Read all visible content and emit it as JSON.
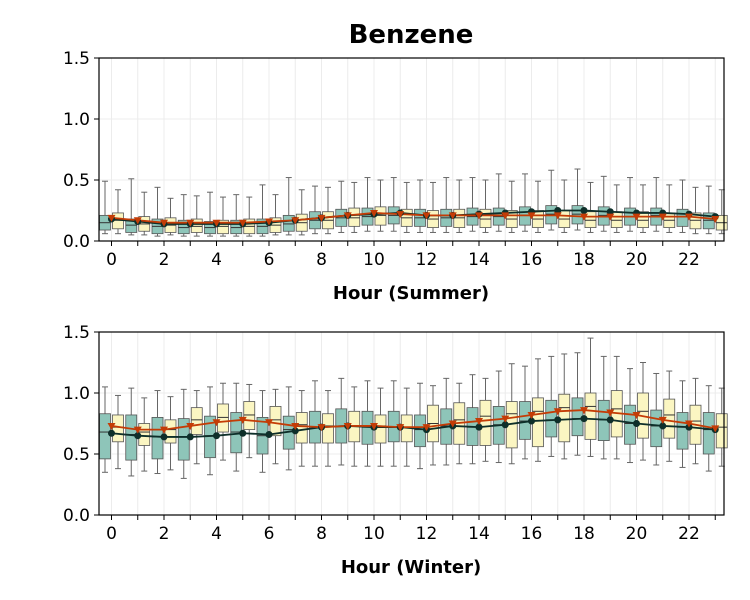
{
  "figure": {
    "title": "Benzene"
  },
  "colors": {
    "box_a": "#8ec5b9",
    "box_b": "#fbf6c2",
    "box_edge": "#555555",
    "whisker": "#666666",
    "line_a": "#0e2f2a",
    "line_b": "#c43c06",
    "grid": "#ececec"
  },
  "chart_data": [
    {
      "type": "box",
      "xlabel": "Hour (Summer)",
      "ylabel": "",
      "ylim": [
        0,
        1.5
      ],
      "yticks": [
        "0.0",
        "0.5",
        "1.0",
        "1.5"
      ],
      "xticks": [
        "0",
        "2",
        "4",
        "6",
        "8",
        "10",
        "12",
        "14",
        "16",
        "18",
        "20",
        "22"
      ],
      "hours": [
        0,
        1,
        2,
        3,
        4,
        5,
        6,
        7,
        8,
        9,
        10,
        11,
        12,
        13,
        14,
        15,
        16,
        17,
        18,
        19,
        20,
        21,
        22,
        23
      ],
      "grid": true,
      "series": [
        {
          "median_line": [
            0.18,
            0.16,
            0.14,
            0.14,
            0.14,
            0.14,
            0.15,
            0.17,
            0.19,
            0.21,
            0.22,
            0.23,
            0.21,
            0.21,
            0.22,
            0.23,
            0.24,
            0.25,
            0.25,
            0.24,
            0.23,
            0.23,
            0.22,
            0.2
          ],
          "boxes": [
            [
              0.06,
              0.09,
              0.15,
              0.21,
              0.49
            ],
            [
              0.05,
              0.07,
              0.13,
              0.18,
              0.51
            ],
            [
              0.04,
              0.06,
              0.12,
              0.18,
              0.44
            ],
            [
              0.04,
              0.06,
              0.11,
              0.17,
              0.38
            ],
            [
              0.04,
              0.06,
              0.11,
              0.16,
              0.4
            ],
            [
              0.04,
              0.06,
              0.11,
              0.17,
              0.38
            ],
            [
              0.04,
              0.06,
              0.12,
              0.18,
              0.46
            ],
            [
              0.05,
              0.08,
              0.14,
              0.21,
              0.52
            ],
            [
              0.06,
              0.1,
              0.17,
              0.24,
              0.45
            ],
            [
              0.07,
              0.12,
              0.19,
              0.26,
              0.49
            ],
            [
              0.08,
              0.13,
              0.2,
              0.27,
              0.52
            ],
            [
              0.08,
              0.14,
              0.21,
              0.28,
              0.52
            ],
            [
              0.07,
              0.12,
              0.19,
              0.26,
              0.5
            ],
            [
              0.07,
              0.12,
              0.19,
              0.26,
              0.52
            ],
            [
              0.08,
              0.13,
              0.2,
              0.27,
              0.52
            ],
            [
              0.08,
              0.13,
              0.2,
              0.27,
              0.55
            ],
            [
              0.08,
              0.13,
              0.21,
              0.28,
              0.55
            ],
            [
              0.09,
              0.14,
              0.22,
              0.29,
              0.58
            ],
            [
              0.09,
              0.14,
              0.22,
              0.29,
              0.59
            ],
            [
              0.08,
              0.13,
              0.21,
              0.28,
              0.53
            ],
            [
              0.08,
              0.13,
              0.2,
              0.27,
              0.52
            ],
            [
              0.08,
              0.13,
              0.21,
              0.27,
              0.52
            ],
            [
              0.07,
              0.12,
              0.2,
              0.26,
              0.5
            ],
            [
              0.06,
              0.1,
              0.17,
              0.23,
              0.45
            ]
          ]
        },
        {
          "mean_line": [
            0.19,
            0.17,
            0.15,
            0.15,
            0.15,
            0.15,
            0.16,
            0.17,
            0.19,
            0.21,
            0.23,
            0.22,
            0.21,
            0.21,
            0.21,
            0.21,
            0.21,
            0.21,
            0.2,
            0.2,
            0.2,
            0.2,
            0.2,
            0.18
          ],
          "boxes": [
            [
              0.06,
              0.1,
              0.17,
              0.23,
              0.42
            ],
            [
              0.05,
              0.08,
              0.14,
              0.2,
              0.4
            ],
            [
              0.05,
              0.07,
              0.13,
              0.19,
              0.35
            ],
            [
              0.04,
              0.07,
              0.12,
              0.18,
              0.37
            ],
            [
              0.04,
              0.06,
              0.12,
              0.17,
              0.36
            ],
            [
              0.04,
              0.06,
              0.12,
              0.18,
              0.36
            ],
            [
              0.05,
              0.07,
              0.13,
              0.19,
              0.38
            ],
            [
              0.05,
              0.08,
              0.15,
              0.22,
              0.42
            ],
            [
              0.06,
              0.1,
              0.17,
              0.24,
              0.44
            ],
            [
              0.07,
              0.12,
              0.19,
              0.27,
              0.48
            ],
            [
              0.08,
              0.13,
              0.21,
              0.28,
              0.5
            ],
            [
              0.07,
              0.12,
              0.19,
              0.26,
              0.48
            ],
            [
              0.07,
              0.11,
              0.18,
              0.25,
              0.48
            ],
            [
              0.07,
              0.11,
              0.19,
              0.26,
              0.5
            ],
            [
              0.07,
              0.11,
              0.18,
              0.26,
              0.5
            ],
            [
              0.07,
              0.11,
              0.18,
              0.25,
              0.49
            ],
            [
              0.07,
              0.11,
              0.18,
              0.25,
              0.49
            ],
            [
              0.07,
              0.11,
              0.18,
              0.25,
              0.5
            ],
            [
              0.07,
              0.11,
              0.17,
              0.24,
              0.48
            ],
            [
              0.07,
              0.11,
              0.17,
              0.24,
              0.46
            ],
            [
              0.07,
              0.11,
              0.17,
              0.24,
              0.46
            ],
            [
              0.07,
              0.11,
              0.17,
              0.23,
              0.46
            ],
            [
              0.06,
              0.1,
              0.17,
              0.23,
              0.44
            ],
            [
              0.06,
              0.09,
              0.15,
              0.21,
              0.42
            ]
          ]
        }
      ]
    },
    {
      "type": "box",
      "xlabel": "Hour (Winter)",
      "ylabel": "",
      "ylim": [
        0,
        1.5
      ],
      "yticks": [
        "0.0",
        "0.5",
        "1.0",
        "1.5"
      ],
      "xticks": [
        "0",
        "2",
        "4",
        "6",
        "8",
        "10",
        "12",
        "14",
        "16",
        "18",
        "20",
        "22"
      ],
      "hours": [
        0,
        1,
        2,
        3,
        4,
        5,
        6,
        7,
        8,
        9,
        10,
        11,
        12,
        13,
        14,
        15,
        16,
        17,
        18,
        19,
        20,
        21,
        22,
        23
      ],
      "grid": true,
      "series": [
        {
          "median_line": [
            0.67,
            0.65,
            0.64,
            0.64,
            0.65,
            0.67,
            0.66,
            0.69,
            0.72,
            0.73,
            0.72,
            0.72,
            0.7,
            0.73,
            0.72,
            0.74,
            0.77,
            0.78,
            0.79,
            0.78,
            0.75,
            0.73,
            0.72,
            0.7
          ],
          "boxes": [
            [
              0.35,
              0.46,
              0.68,
              0.83,
              1.05
            ],
            [
              0.32,
              0.45,
              0.66,
              0.82,
              1.04
            ],
            [
              0.34,
              0.46,
              0.64,
              0.8,
              1.02
            ],
            [
              0.3,
              0.45,
              0.64,
              0.79,
              1.03
            ],
            [
              0.33,
              0.47,
              0.65,
              0.81,
              1.05
            ],
            [
              0.36,
              0.51,
              0.68,
              0.84,
              1.08
            ],
            [
              0.35,
              0.5,
              0.65,
              0.8,
              1.02
            ],
            [
              0.37,
              0.54,
              0.7,
              0.81,
              1.05
            ],
            [
              0.4,
              0.59,
              0.72,
              0.85,
              1.1
            ],
            [
              0.41,
              0.59,
              0.73,
              0.87,
              1.12
            ],
            [
              0.4,
              0.58,
              0.72,
              0.85,
              1.1
            ],
            [
              0.4,
              0.6,
              0.72,
              0.85,
              1.1
            ],
            [
              0.38,
              0.56,
              0.7,
              0.82,
              1.08
            ],
            [
              0.41,
              0.58,
              0.73,
              0.87,
              1.12
            ],
            [
              0.42,
              0.57,
              0.72,
              0.88,
              1.15
            ],
            [
              0.43,
              0.58,
              0.74,
              0.89,
              1.18
            ],
            [
              0.46,
              0.62,
              0.77,
              0.93,
              1.22
            ],
            [
              0.48,
              0.64,
              0.78,
              0.94,
              1.3
            ],
            [
              0.49,
              0.65,
              0.79,
              0.96,
              1.33
            ],
            [
              0.46,
              0.61,
              0.78,
              0.94,
              1.3
            ],
            [
              0.43,
              0.58,
              0.75,
              0.9,
              1.2
            ],
            [
              0.41,
              0.56,
              0.73,
              0.86,
              1.16
            ],
            [
              0.39,
              0.54,
              0.72,
              0.84,
              1.1
            ],
            [
              0.36,
              0.5,
              0.7,
              0.84,
              1.06
            ]
          ]
        },
        {
          "mean_line": [
            0.73,
            0.7,
            0.7,
            0.73,
            0.76,
            0.78,
            0.76,
            0.73,
            0.72,
            0.73,
            0.73,
            0.72,
            0.72,
            0.75,
            0.77,
            0.79,
            0.82,
            0.85,
            0.86,
            0.84,
            0.82,
            0.78,
            0.75,
            0.71
          ],
          "boxes": [
            [
              0.38,
              0.6,
              0.72,
              0.82,
              0.98
            ],
            [
              0.36,
              0.57,
              0.68,
              0.75,
              0.96
            ],
            [
              0.37,
              0.59,
              0.7,
              0.78,
              0.97
            ],
            [
              0.42,
              0.66,
              0.78,
              0.88,
              1.02
            ],
            [
              0.45,
              0.68,
              0.8,
              0.91,
              1.08
            ],
            [
              0.47,
              0.7,
              0.82,
              0.93,
              1.07
            ],
            [
              0.42,
              0.65,
              0.78,
              0.89,
              1.03
            ],
            [
              0.4,
              0.59,
              0.74,
              0.84,
              1.02
            ],
            [
              0.4,
              0.59,
              0.73,
              0.83,
              1.02
            ],
            [
              0.4,
              0.6,
              0.73,
              0.85,
              1.05
            ],
            [
              0.4,
              0.59,
              0.73,
              0.82,
              1.04
            ],
            [
              0.4,
              0.6,
              0.72,
              0.82,
              1.04
            ],
            [
              0.41,
              0.6,
              0.75,
              0.9,
              1.06
            ],
            [
              0.42,
              0.58,
              0.78,
              0.92,
              1.08
            ],
            [
              0.44,
              0.57,
              0.81,
              0.94,
              1.12
            ],
            [
              0.42,
              0.55,
              0.83,
              0.93,
              1.24
            ],
            [
              0.44,
              0.56,
              0.85,
              0.96,
              1.28
            ],
            [
              0.46,
              0.6,
              0.88,
              0.99,
              1.32
            ],
            [
              0.48,
              0.62,
              0.89,
              1.0,
              1.45
            ],
            [
              0.46,
              0.64,
              0.87,
              1.02,
              1.3
            ],
            [
              0.45,
              0.63,
              0.85,
              1.0,
              1.25
            ],
            [
              0.44,
              0.63,
              0.82,
              0.95,
              1.18
            ],
            [
              0.42,
              0.58,
              0.77,
              0.9,
              1.12
            ],
            [
              0.4,
              0.55,
              0.72,
              0.83,
              1.04
            ]
          ]
        }
      ]
    }
  ]
}
